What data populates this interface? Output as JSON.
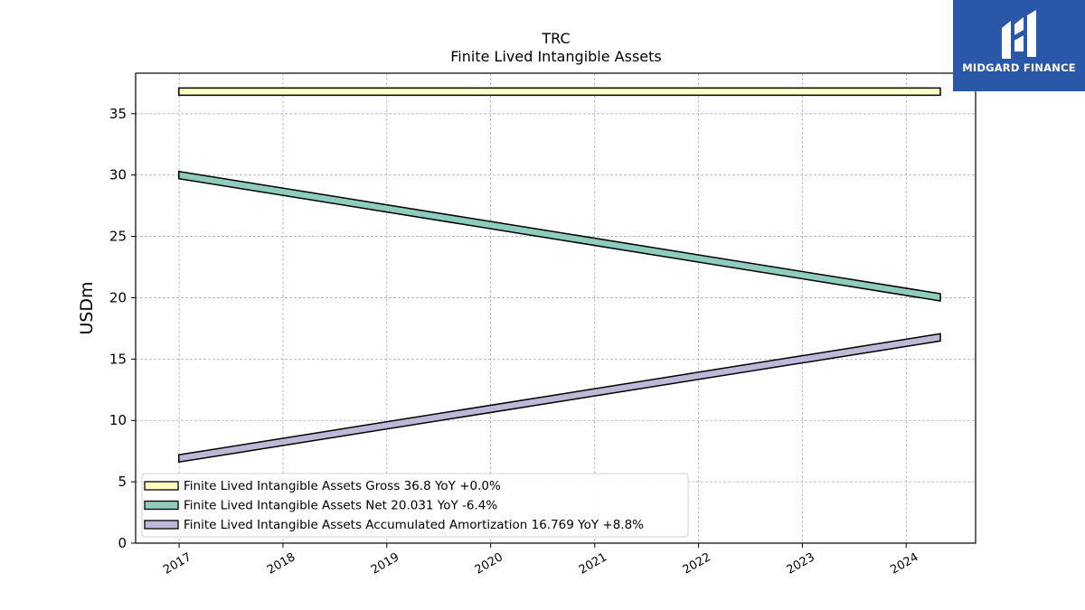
{
  "brand": {
    "name": "MIDGARD FINANCE",
    "bg_color": "#2b57a8"
  },
  "chart_data": {
    "type": "area",
    "title": "TRC",
    "subtitle": "Finite Lived Intangible Assets",
    "xlabel": "",
    "ylabel": "USDm",
    "x": [
      "2016-12-31",
      "2024-04-30"
    ],
    "x_ticks": [
      "2017",
      "2018",
      "2019",
      "2020",
      "2021",
      "2022",
      "2023",
      "2024"
    ],
    "y_ticks": [
      0,
      5,
      10,
      15,
      20,
      25,
      30,
      35
    ],
    "ylim": [
      0,
      38.3
    ],
    "grid": true,
    "legend_position": "lower-left",
    "series": [
      {
        "name": "Finite Lived Intangible Assets Gross",
        "values": [
          36.8,
          36.8
        ],
        "color": "#ffffbf",
        "legend_label": "Finite Lived Intangible Assets Gross  36.8 YoY +0.0%"
      },
      {
        "name": "Finite Lived Intangible Assets Net",
        "values": [
          30.0,
          20.031
        ],
        "color": "#8ecdbd",
        "legend_label": "Finite Lived Intangible Assets Net  20.031 YoY -6.4%"
      },
      {
        "name": "Finite Lived Intangible Assets Accumulated Amortization",
        "values": [
          6.9,
          16.769
        ],
        "color": "#bcb8d8",
        "legend_label": "Finite Lived Intangible Assets Accumulated Amortization  16.769 YoY +8.8%"
      }
    ]
  }
}
